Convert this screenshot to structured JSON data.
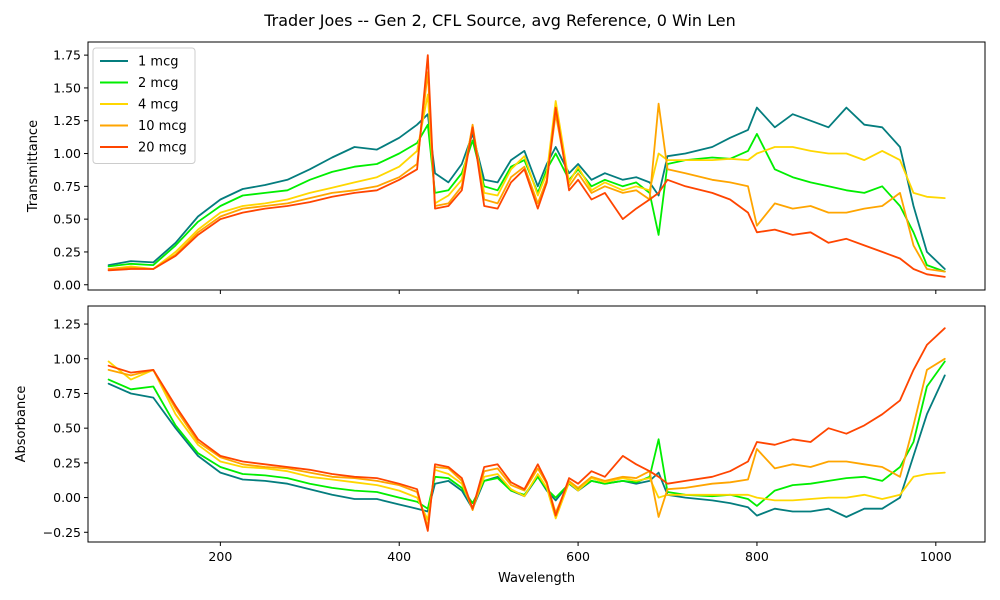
{
  "title": "Trader Joes -- Gen 2, CFL Source, avg Reference, 0 Win Len",
  "chart_data": [
    {
      "type": "line",
      "title": "",
      "xlabel": "",
      "ylabel": "Transmittance",
      "xlim": [
        52,
        1055
      ],
      "ylim": [
        -0.04,
        1.85
      ],
      "xticks": [
        200,
        400,
        600,
        800,
        1000
      ],
      "yticks": [
        0.0,
        0.25,
        0.5,
        0.75,
        1.0,
        1.25,
        1.5,
        1.75
      ],
      "ytick_labels": [
        "0.00",
        "0.25",
        "0.50",
        "0.75",
        "1.00",
        "1.25",
        "1.50",
        "1.75"
      ],
      "show_xtick_labels": false,
      "grid": false,
      "legend": "top-left",
      "x": [
        75,
        100,
        125,
        150,
        175,
        200,
        225,
        250,
        275,
        300,
        325,
        350,
        375,
        400,
        420,
        432,
        440,
        455,
        470,
        482,
        495,
        510,
        525,
        540,
        555,
        565,
        575,
        590,
        600,
        615,
        630,
        650,
        665,
        680,
        690,
        700,
        720,
        750,
        770,
        790,
        800,
        820,
        840,
        860,
        880,
        900,
        920,
        940,
        960,
        975,
        990,
        1010
      ],
      "series": [
        {
          "name": "1 mcg",
          "color": "#047d7e",
          "values": [
            0.15,
            0.18,
            0.17,
            0.32,
            0.52,
            0.65,
            0.73,
            0.76,
            0.8,
            0.88,
            0.97,
            1.05,
            1.03,
            1.12,
            1.22,
            1.3,
            0.85,
            0.78,
            0.92,
            1.15,
            0.8,
            0.78,
            0.95,
            1.02,
            0.75,
            0.92,
            1.05,
            0.85,
            0.92,
            0.8,
            0.85,
            0.8,
            0.82,
            0.78,
            0.68,
            0.98,
            1.0,
            1.05,
            1.12,
            1.18,
            1.35,
            1.2,
            1.3,
            1.25,
            1.2,
            1.35,
            1.22,
            1.2,
            1.05,
            0.6,
            0.25,
            0.12
          ]
        },
        {
          "name": "2 mcg",
          "color": "#00ee00",
          "values": [
            0.14,
            0.16,
            0.15,
            0.3,
            0.48,
            0.6,
            0.68,
            0.7,
            0.72,
            0.8,
            0.86,
            0.9,
            0.92,
            1.0,
            1.08,
            1.22,
            0.7,
            0.72,
            0.85,
            1.1,
            0.75,
            0.72,
            0.9,
            0.95,
            0.7,
            0.88,
            1.0,
            0.8,
            0.88,
            0.75,
            0.8,
            0.75,
            0.78,
            0.7,
            0.38,
            0.92,
            0.95,
            0.97,
            0.96,
            1.02,
            1.15,
            0.88,
            0.82,
            0.78,
            0.75,
            0.72,
            0.7,
            0.75,
            0.6,
            0.4,
            0.15,
            0.1
          ]
        },
        {
          "name": "4 mcg",
          "color": "#ffd700",
          "values": [
            0.12,
            0.14,
            0.12,
            0.25,
            0.42,
            0.55,
            0.6,
            0.62,
            0.65,
            0.7,
            0.74,
            0.78,
            0.82,
            0.9,
            1.02,
            1.45,
            0.62,
            0.68,
            0.8,
            1.2,
            0.7,
            0.68,
            0.88,
            0.98,
            0.68,
            0.85,
            1.4,
            0.78,
            0.9,
            0.72,
            0.78,
            0.72,
            0.75,
            0.72,
            1.0,
            0.95,
            0.95,
            0.95,
            0.96,
            0.95,
            1.0,
            1.05,
            1.05,
            1.02,
            1.0,
            1.0,
            0.95,
            1.02,
            0.95,
            0.7,
            0.67,
            0.66
          ]
        },
        {
          "name": "10 mcg",
          "color": "#ffa500",
          "values": [
            0.12,
            0.13,
            0.12,
            0.23,
            0.4,
            0.52,
            0.58,
            0.6,
            0.62,
            0.66,
            0.7,
            0.72,
            0.75,
            0.82,
            0.92,
            1.62,
            0.6,
            0.62,
            0.75,
            1.22,
            0.65,
            0.62,
            0.82,
            0.9,
            0.62,
            0.8,
            1.3,
            0.75,
            0.85,
            0.7,
            0.75,
            0.7,
            0.72,
            0.65,
            1.38,
            0.88,
            0.85,
            0.8,
            0.78,
            0.75,
            0.45,
            0.62,
            0.58,
            0.6,
            0.55,
            0.55,
            0.58,
            0.6,
            0.7,
            0.3,
            0.12,
            0.1
          ]
        },
        {
          "name": "20 mcg",
          "color": "#ff4500",
          "values": [
            0.11,
            0.12,
            0.12,
            0.22,
            0.38,
            0.5,
            0.55,
            0.58,
            0.6,
            0.63,
            0.67,
            0.7,
            0.72,
            0.8,
            0.88,
            1.75,
            0.58,
            0.6,
            0.72,
            1.2,
            0.6,
            0.58,
            0.78,
            0.88,
            0.58,
            0.78,
            1.35,
            0.72,
            0.8,
            0.65,
            0.7,
            0.5,
            0.58,
            0.65,
            0.7,
            0.8,
            0.75,
            0.7,
            0.65,
            0.55,
            0.4,
            0.42,
            0.38,
            0.4,
            0.32,
            0.35,
            0.3,
            0.25,
            0.2,
            0.12,
            0.08,
            0.06
          ]
        }
      ]
    },
    {
      "type": "line",
      "title": "",
      "xlabel": "Wavelength",
      "ylabel": "Absorbance",
      "xlim": [
        52,
        1055
      ],
      "ylim": [
        -0.32,
        1.38
      ],
      "xticks": [
        200,
        400,
        600,
        800,
        1000
      ],
      "xtick_labels": [
        "200",
        "400",
        "600",
        "800",
        "1000"
      ],
      "yticks": [
        -0.25,
        0.0,
        0.25,
        0.5,
        0.75,
        1.0,
        1.25
      ],
      "ytick_labels": [
        "−0.25",
        "0.00",
        "0.25",
        "0.50",
        "0.75",
        "1.00",
        "1.25"
      ],
      "grid": false,
      "legend": "none",
      "x": [
        75,
        100,
        125,
        150,
        175,
        200,
        225,
        250,
        275,
        300,
        325,
        350,
        375,
        400,
        420,
        432,
        440,
        455,
        470,
        482,
        495,
        510,
        525,
        540,
        555,
        565,
        575,
        590,
        600,
        615,
        630,
        650,
        665,
        680,
        690,
        700,
        720,
        750,
        770,
        790,
        800,
        820,
        840,
        860,
        880,
        900,
        920,
        940,
        960,
        975,
        990,
        1010
      ],
      "series": [
        {
          "name": "1 mcg",
          "color": "#047d7e",
          "values": [
            0.82,
            0.75,
            0.72,
            0.5,
            0.3,
            0.18,
            0.13,
            0.12,
            0.1,
            0.06,
            0.02,
            -0.01,
            -0.01,
            -0.05,
            -0.08,
            -0.1,
            0.1,
            0.12,
            0.05,
            -0.08,
            0.12,
            0.15,
            0.05,
            0.01,
            0.15,
            0.05,
            -0.02,
            0.1,
            0.05,
            0.12,
            0.1,
            0.12,
            0.1,
            0.12,
            0.18,
            0.02,
            0.0,
            -0.02,
            -0.04,
            -0.07,
            -0.13,
            -0.08,
            -0.1,
            -0.1,
            -0.08,
            -0.14,
            -0.08,
            -0.08,
            0.0,
            0.3,
            0.6,
            0.88
          ]
        },
        {
          "name": "2 mcg",
          "color": "#00ee00",
          "values": [
            0.85,
            0.78,
            0.8,
            0.52,
            0.32,
            0.22,
            0.17,
            0.16,
            0.14,
            0.1,
            0.07,
            0.05,
            0.04,
            0.0,
            -0.03,
            -0.08,
            0.15,
            0.14,
            0.07,
            -0.04,
            0.12,
            0.14,
            0.05,
            0.02,
            0.15,
            0.06,
            0.0,
            0.1,
            0.06,
            0.12,
            0.1,
            0.12,
            0.11,
            0.15,
            0.42,
            0.04,
            0.02,
            0.01,
            0.02,
            -0.01,
            -0.06,
            0.05,
            0.09,
            0.1,
            0.12,
            0.14,
            0.15,
            0.12,
            0.22,
            0.4,
            0.8,
            0.98
          ]
        },
        {
          "name": "4 mcg",
          "color": "#ffd700",
          "values": [
            0.98,
            0.85,
            0.92,
            0.6,
            0.38,
            0.26,
            0.22,
            0.21,
            0.19,
            0.15,
            0.13,
            0.11,
            0.09,
            0.05,
            0.0,
            -0.16,
            0.2,
            0.17,
            0.1,
            -0.08,
            0.15,
            0.17,
            0.06,
            0.01,
            0.17,
            0.07,
            -0.15,
            0.11,
            0.05,
            0.14,
            0.11,
            0.14,
            0.12,
            0.14,
            0.0,
            0.02,
            0.02,
            0.02,
            0.02,
            0.02,
            0.0,
            -0.02,
            -0.02,
            -0.01,
            0.0,
            0.0,
            0.02,
            -0.01,
            0.02,
            0.15,
            0.17,
            0.18
          ]
        },
        {
          "name": "10 mcg",
          "color": "#ffa500",
          "values": [
            0.92,
            0.88,
            0.92,
            0.64,
            0.4,
            0.29,
            0.24,
            0.22,
            0.21,
            0.18,
            0.15,
            0.14,
            0.12,
            0.09,
            0.04,
            -0.21,
            0.22,
            0.21,
            0.12,
            -0.09,
            0.19,
            0.21,
            0.09,
            0.05,
            0.21,
            0.1,
            -0.11,
            0.12,
            0.07,
            0.15,
            0.12,
            0.15,
            0.14,
            0.19,
            -0.14,
            0.06,
            0.07,
            0.1,
            0.11,
            0.13,
            0.35,
            0.21,
            0.24,
            0.22,
            0.26,
            0.26,
            0.24,
            0.22,
            0.15,
            0.52,
            0.92,
            1.0
          ]
        },
        {
          "name": "20 mcg",
          "color": "#ff4500",
          "values": [
            0.95,
            0.9,
            0.92,
            0.66,
            0.42,
            0.3,
            0.26,
            0.24,
            0.22,
            0.2,
            0.17,
            0.15,
            0.14,
            0.1,
            0.06,
            -0.24,
            0.24,
            0.22,
            0.14,
            -0.08,
            0.22,
            0.24,
            0.11,
            0.06,
            0.24,
            0.11,
            -0.13,
            0.14,
            0.1,
            0.19,
            0.15,
            0.3,
            0.24,
            0.19,
            0.15,
            0.1,
            0.12,
            0.15,
            0.19,
            0.26,
            0.4,
            0.38,
            0.42,
            0.4,
            0.5,
            0.46,
            0.52,
            0.6,
            0.7,
            0.92,
            1.1,
            1.22
          ]
        }
      ]
    }
  ]
}
